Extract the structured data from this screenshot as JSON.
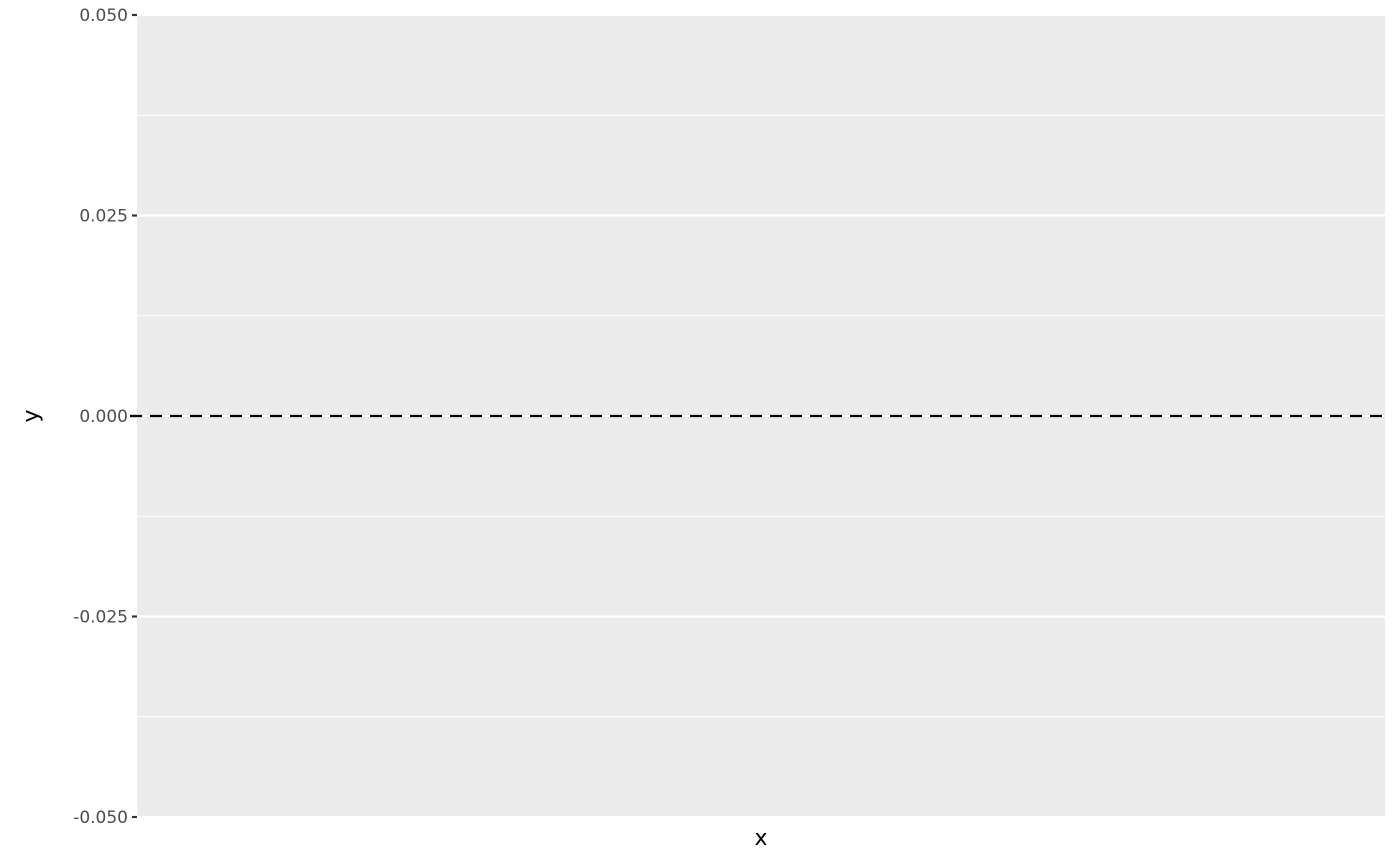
{
  "chart_data": {
    "type": "line",
    "title": "",
    "xlabel": "x",
    "ylabel": "y",
    "ylim": [
      -0.05,
      0.05
    ],
    "y_ticks": [
      0.05,
      0.025,
      0.0,
      -0.025,
      -0.05
    ],
    "y_tick_labels": [
      "0.050",
      "0.025",
      "0.000",
      "-0.025",
      "-0.050"
    ],
    "x_ticks": [],
    "grid": true,
    "panel_background": "#ebebeb",
    "reference_lines": [
      {
        "orientation": "horizontal",
        "y": 0,
        "linetype": "dashed",
        "color": "#000000"
      }
    ],
    "series": []
  }
}
